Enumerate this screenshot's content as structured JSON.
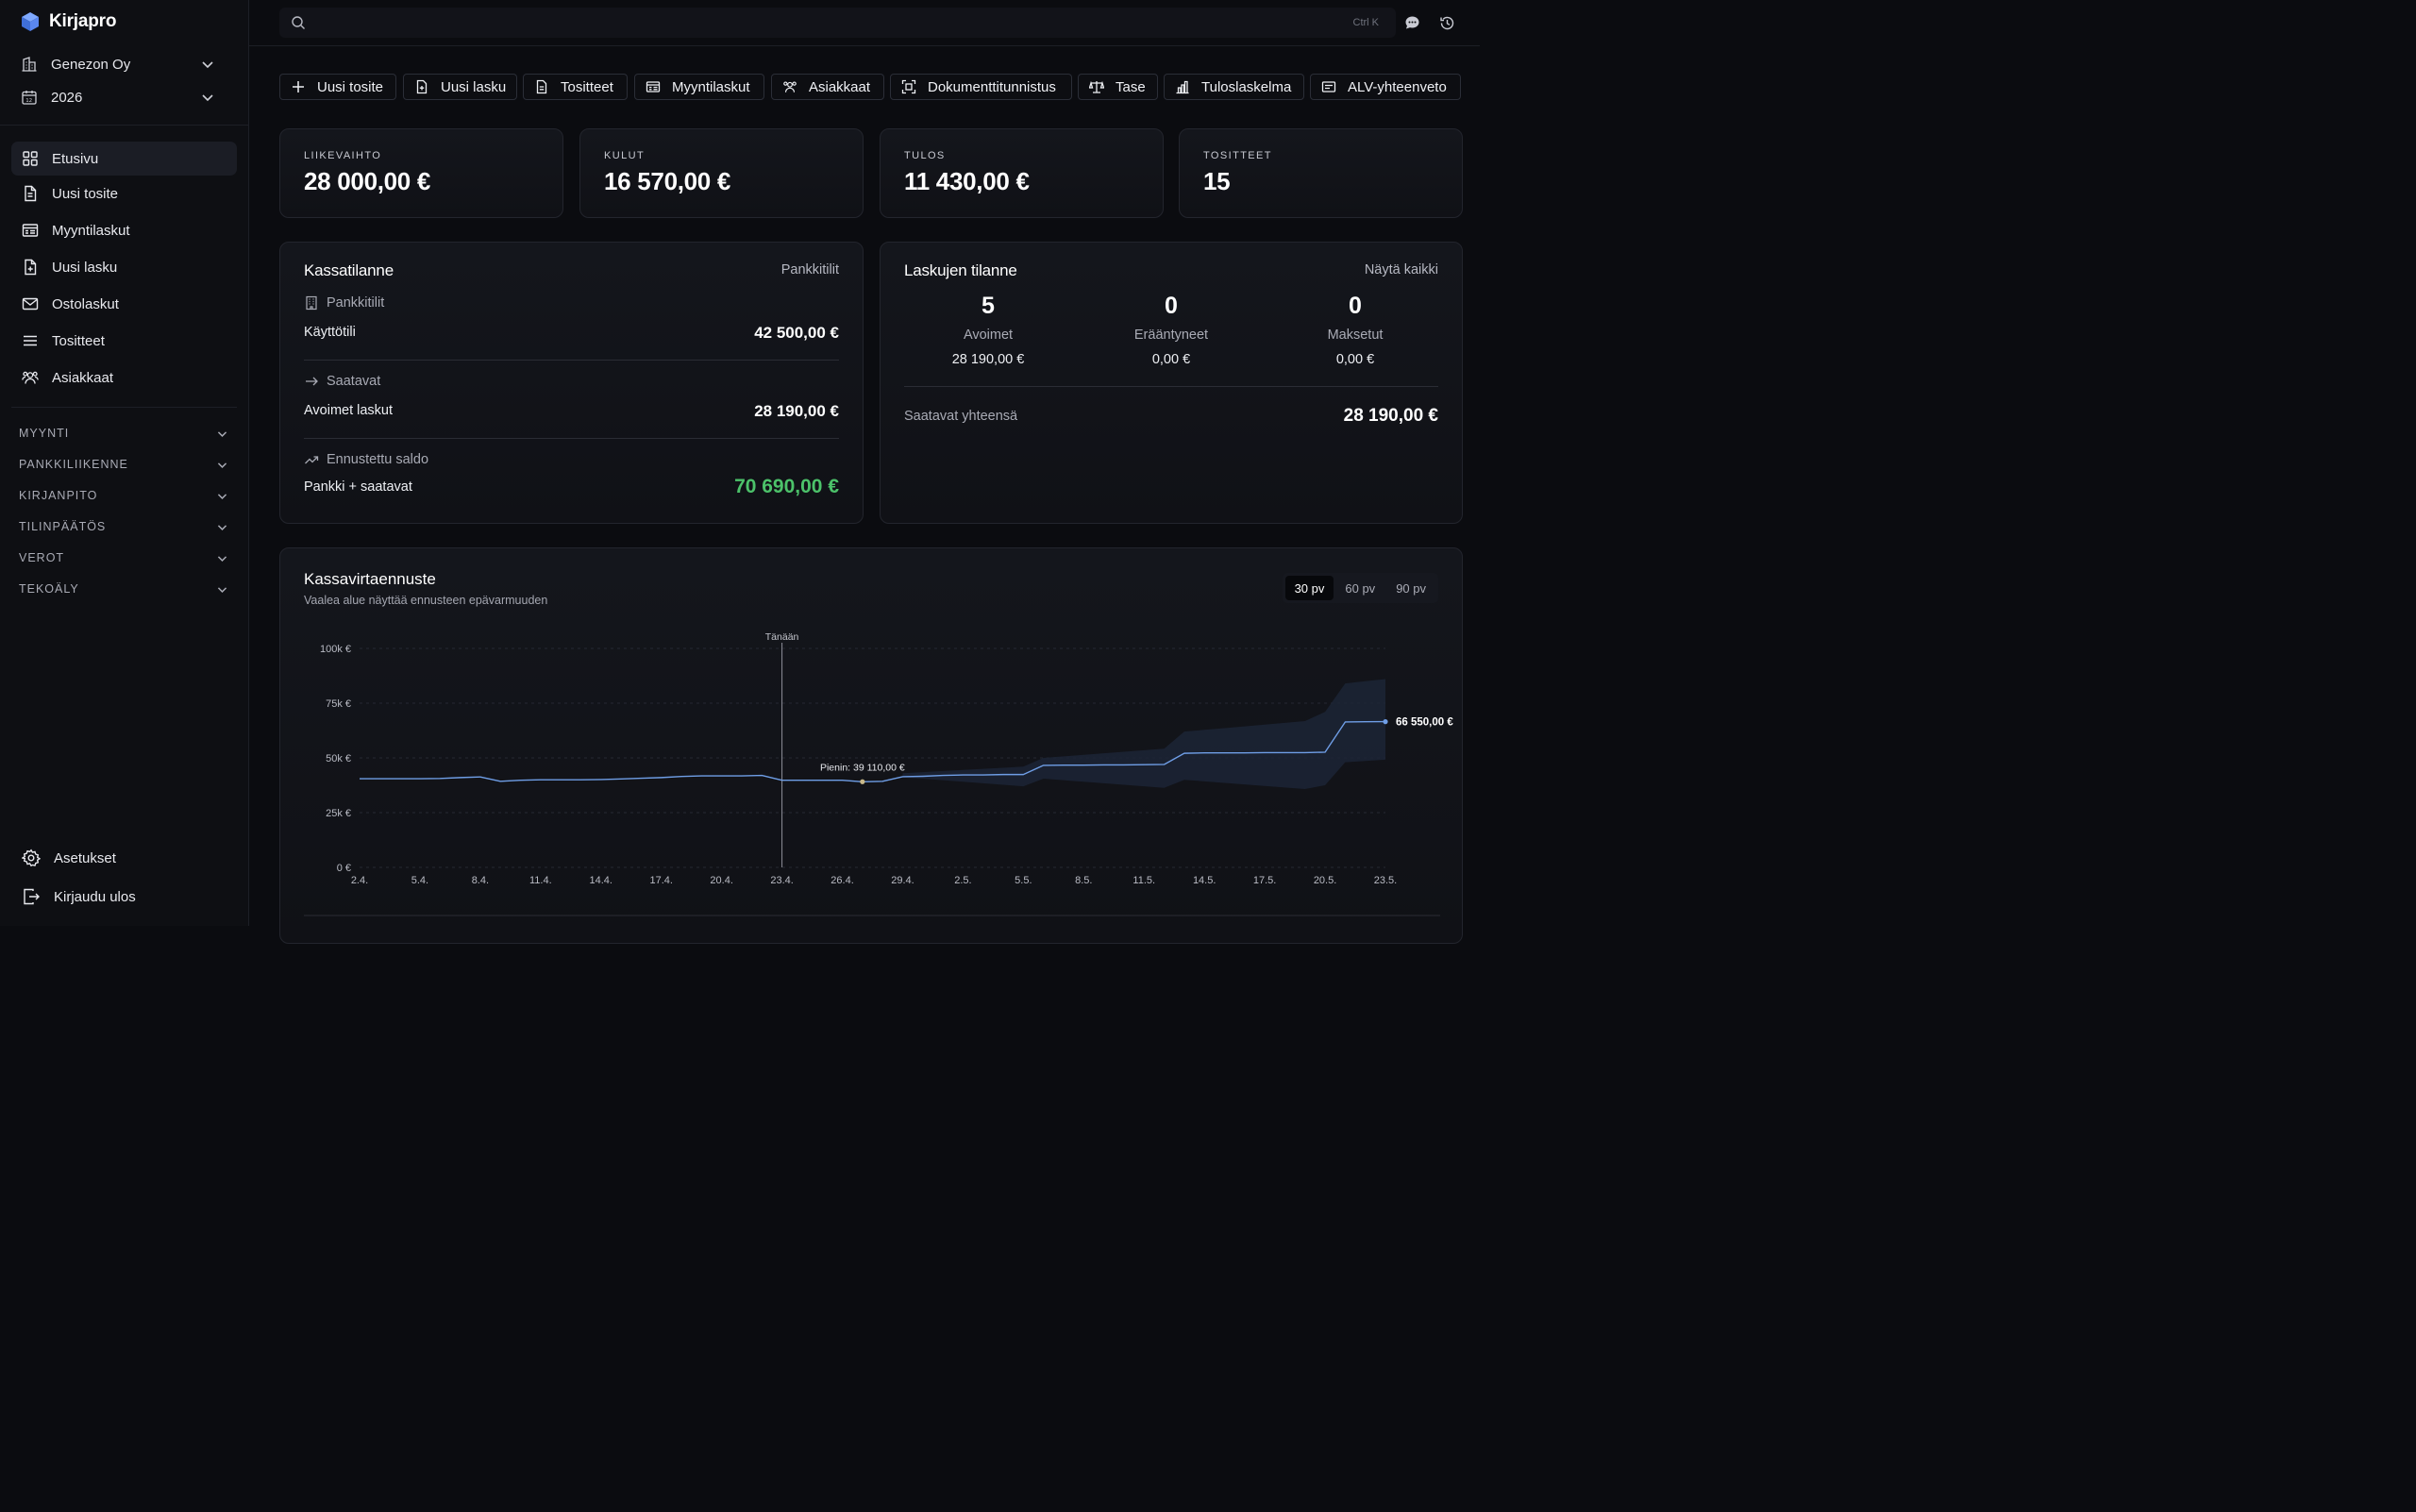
{
  "app": {
    "name": "Kirjapro"
  },
  "sidebar": {
    "company": "Genezon Oy",
    "year": "2026",
    "nav": [
      {
        "label": "Etusivu",
        "icon": "dashboard-icon",
        "active": true
      },
      {
        "label": "Uusi tosite",
        "icon": "document-icon"
      },
      {
        "label": "Myyntilaskut",
        "icon": "invoice-list-icon"
      },
      {
        "label": "Uusi lasku",
        "icon": "document-plus-icon"
      },
      {
        "label": "Ostolaskut",
        "icon": "mail-icon"
      },
      {
        "label": "Tositteet",
        "icon": "list-icon"
      },
      {
        "label": "Asiakkaat",
        "icon": "users-icon"
      }
    ],
    "groups": [
      "MYYNTI",
      "PANKKILIIKENNE",
      "KIRJANPITO",
      "TILINPÄÄTÖS",
      "VEROT",
      "TEKOÄLY"
    ],
    "footer": [
      {
        "label": "Asetukset",
        "icon": "gear-icon"
      },
      {
        "label": "Kirjaudu ulos",
        "icon": "logout-icon"
      }
    ]
  },
  "topbar": {
    "search_placeholder": "",
    "shortcut": "Ctrl K"
  },
  "quick_actions": [
    {
      "label": "Uusi tosite",
      "icon": "plus-icon"
    },
    {
      "label": "Uusi lasku",
      "icon": "document-plus-icon"
    },
    {
      "label": "Tositteet",
      "icon": "document-icon"
    },
    {
      "label": "Myyntilaskut",
      "icon": "invoice-list-icon"
    },
    {
      "label": "Asiakkaat",
      "icon": "users-icon"
    },
    {
      "label": "Dokumenttitunnistus",
      "icon": "scan-icon"
    },
    {
      "label": "Tase",
      "icon": "scale-icon"
    },
    {
      "label": "Tuloslaskelma",
      "icon": "bar-chart-icon"
    },
    {
      "label": "ALV-yhteenveto",
      "icon": "receipt-icon"
    }
  ],
  "kpis": [
    {
      "label": "LIIKEVAIHTO",
      "value": "28 000,00 €"
    },
    {
      "label": "KULUT",
      "value": "16 570,00 €"
    },
    {
      "label": "TULOS",
      "value": "11 430,00 €"
    },
    {
      "label": "TOSITTEET",
      "value": "15"
    }
  ],
  "cash": {
    "title": "Kassatilanne",
    "link": "Pankkitilit",
    "sections": [
      {
        "sub": "Pankkitilit",
        "icon": "bank-icon",
        "label": "Käyttötili",
        "value": "42 500,00 €"
      },
      {
        "sub": "Saatavat",
        "icon": "arrow-right-icon",
        "label": "Avoimet laskut",
        "value": "28 190,00 €"
      },
      {
        "sub": "Ennustettu saldo",
        "icon": "trend-up-icon",
        "label": "Pankki + saatavat",
        "value": "70 690,00 €"
      }
    ]
  },
  "invoices": {
    "title": "Laskujen tilanne",
    "link": "Näytä kaikki",
    "stats": [
      {
        "count": "5",
        "label": "Avoimet",
        "amount": "28 190,00 €"
      },
      {
        "count": "0",
        "label": "Erääntyneet",
        "amount": "0,00 €"
      },
      {
        "count": "0",
        "label": "Maksetut",
        "amount": "0,00 €"
      }
    ],
    "total_label": "Saatavat yhteensä",
    "total_value": "28 190,00 €"
  },
  "forecast": {
    "title": "Kassavirtaennuste",
    "subtitle": "Vaalea alue näyttää ennusteen epävarmuuden",
    "ranges": [
      "30 pv",
      "60 pv",
      "90 pv"
    ],
    "active_range": "30 pv"
  },
  "colors": {
    "line": "#6f9ee6",
    "band": "#1c2536",
    "positive": "#4cc26a",
    "marker_min": "#c9b98a"
  },
  "chart_data": {
    "type": "line",
    "title": "Kassavirtaennuste",
    "x_ticks": [
      "2.4.",
      "5.4.",
      "8.4.",
      "11.4.",
      "14.4.",
      "17.4.",
      "20.4.",
      "23.4.",
      "26.4.",
      "29.4.",
      "2.5.",
      "5.5.",
      "8.5.",
      "11.5.",
      "14.5.",
      "17.5.",
      "20.5.",
      "23.5."
    ],
    "y_ticks": [
      "0 €",
      "25k €",
      "50k €",
      "75k €",
      "100k €"
    ],
    "ylim": [
      0,
      100000
    ],
    "today_label": "Tänään",
    "today_day": 21,
    "min_label": "Pienin: 39 110,00 €",
    "min_day": 25,
    "end_label": "66 550,00 €",
    "series": [
      {
        "day": [
          0,
          1,
          2,
          3,
          4,
          5,
          6,
          7,
          8,
          9,
          10,
          11,
          12,
          13,
          14,
          15,
          16,
          17,
          18,
          19,
          20,
          21,
          22,
          23,
          24,
          25,
          26,
          27,
          28,
          29,
          30,
          31,
          32,
          33,
          34,
          35,
          36,
          37,
          38,
          39,
          40,
          41,
          42,
          43,
          44,
          45,
          46,
          47,
          48,
          49,
          50,
          51
        ],
        "values": [
          40500,
          40500,
          40500,
          40500,
          40600,
          41000,
          41300,
          39300,
          39800,
          40000,
          40000,
          40000,
          40100,
          40400,
          40700,
          41000,
          41500,
          41800,
          41800,
          41800,
          42000,
          39800,
          39800,
          39800,
          39800,
          39110,
          39300,
          41400,
          41600,
          42000,
          42200,
          42200,
          42400,
          42400,
          46600,
          46700,
          46700,
          46800,
          46800,
          46900,
          47000,
          52100,
          52300,
          52300,
          52300,
          52400,
          52400,
          52400,
          52600,
          66400,
          66500,
          66550
        ]
      }
    ],
    "band_upper": [
      null,
      null,
      null,
      null,
      null,
      null,
      null,
      null,
      null,
      null,
      null,
      null,
      null,
      null,
      null,
      null,
      null,
      null,
      null,
      null,
      null,
      null,
      null,
      null,
      null,
      null,
      null,
      43000,
      43500,
      44000,
      44500,
      45000,
      45500,
      46000,
      50000,
      50700,
      51400,
      52100,
      52800,
      53500,
      54200,
      62000,
      62800,
      63600,
      64400,
      65200,
      66000,
      66800,
      71000,
      84000,
      85000,
      86000
    ],
    "band_lower": [
      null,
      null,
      null,
      null,
      null,
      null,
      null,
      null,
      null,
      null,
      null,
      null,
      null,
      null,
      null,
      null,
      null,
      null,
      null,
      null,
      null,
      null,
      null,
      null,
      null,
      null,
      null,
      41000,
      40500,
      39800,
      39100,
      38400,
      37700,
      37000,
      40500,
      39800,
      39100,
      38400,
      37700,
      37000,
      36300,
      40000,
      39300,
      38600,
      37900,
      37200,
      36500,
      35800,
      37500,
      48000,
      48600,
      49200
    ]
  }
}
